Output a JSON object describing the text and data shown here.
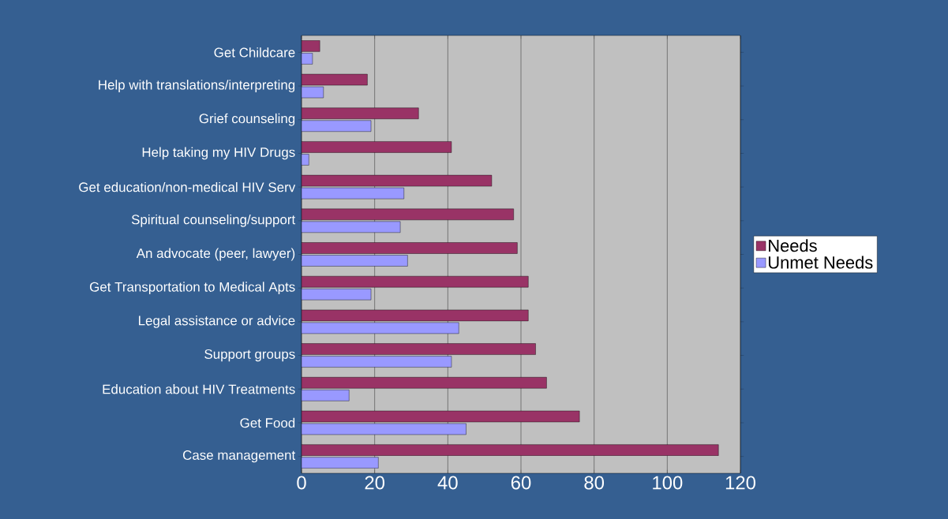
{
  "chart_data": {
    "type": "bar",
    "orientation": "horizontal",
    "categories": [
      "Get Childcare",
      "Help with translations/interpreting",
      "Grief counseling",
      "Help taking my HIV Drugs",
      "Get education/non-medical HIV Serv",
      "Spiritual counseling/support",
      "An advocate (peer, lawyer)",
      "Get Transportation to Medical Apts",
      "Legal assistance or advice",
      "Support groups",
      "Education about HIV Treatments",
      "Get Food",
      "Case management"
    ],
    "series": [
      {
        "name": "Needs",
        "color": "#993366",
        "values": [
          5,
          18,
          32,
          41,
          52,
          58,
          59,
          62,
          62,
          64,
          67,
          76,
          114
        ]
      },
      {
        "name": "Unmet Needs",
        "color": "#9999ff",
        "values": [
          3,
          6,
          19,
          2,
          28,
          27,
          29,
          19,
          43,
          41,
          13,
          45,
          21
        ]
      }
    ],
    "xlim": [
      0,
      120
    ],
    "xticks": [
      0,
      20,
      40,
      60,
      80,
      100,
      120
    ],
    "grid": "x",
    "legend": "right"
  }
}
